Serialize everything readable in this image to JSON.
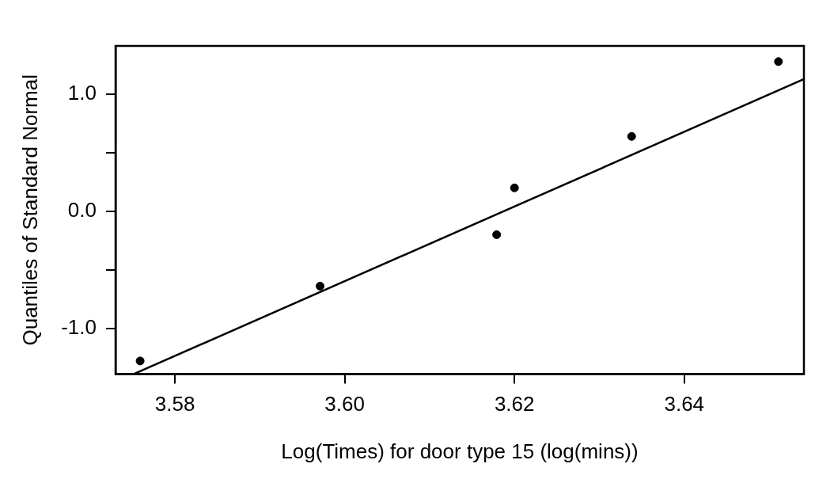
{
  "chart_data": {
    "type": "scatter",
    "xlabel": "Log(Times) for door type 15 (log(mins))",
    "ylabel": "Quantiles of Standard Normal",
    "series": [
      {
        "type": "scatter",
        "color": "#000000",
        "marker": "circle",
        "x": [
          3.5759,
          3.5971,
          3.6179,
          3.62,
          3.6338,
          3.6511
        ],
        "values": [
          -1.28,
          -0.64,
          -0.2,
          0.2,
          0.64,
          1.28
        ]
      },
      {
        "type": "line",
        "color": "#000000",
        "line_style": "solid",
        "x": [
          3.5752,
          3.6541
        ],
        "values": [
          -1.39,
          1.13
        ]
      }
    ],
    "grid": false,
    "legend": false,
    "xlim": [
      3.573,
      3.6541
    ],
    "xticks": [
      3.58,
      {
        "value": 3.6,
        "label": "3.60"
      },
      3.62,
      3.64
    ],
    "ylim": [
      -1.393,
      1.414
    ],
    "yticks": [
      {
        "value": -1,
        "label": "-1.0"
      },
      {
        "value": -0.5,
        "label": null
      },
      {
        "value": 0,
        "label": "0.0"
      },
      {
        "value": 0.5,
        "label": null
      },
      {
        "value": 1,
        "label": "1.0"
      }
    ]
  }
}
